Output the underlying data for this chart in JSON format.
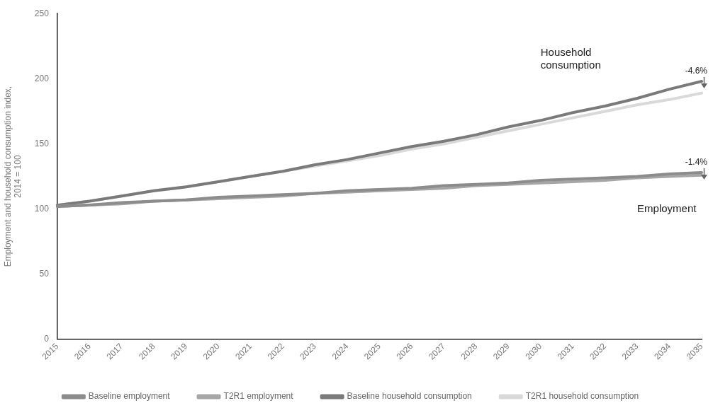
{
  "chart_data": {
    "type": "line",
    "ylabel": "Employment and household consumption index, 2014 = 100",
    "categories": [
      "2015",
      "2016",
      "2017",
      "2018",
      "2019",
      "2020",
      "2021",
      "2022",
      "2023",
      "2024",
      "2025",
      "2026",
      "2027",
      "2028",
      "2029",
      "2030",
      "2031",
      "2032",
      "2033",
      "2034",
      "2035"
    ],
    "series": [
      {
        "name": "Baseline employment",
        "color": "#8c8c8c",
        "values": [
          102,
          103,
          105,
          106,
          107,
          109,
          110,
          111,
          112,
          114,
          115,
          116,
          118,
          119,
          120,
          122,
          123,
          124,
          125,
          127,
          128
        ]
      },
      {
        "name": "T2R1 employment",
        "color": "#a6a6a6",
        "values": [
          102,
          103,
          104,
          106,
          107,
          108,
          109,
          110,
          112,
          113,
          114,
          115,
          116,
          118,
          119,
          120,
          121,
          122,
          124,
          125,
          126
        ]
      },
      {
        "name": "Baseline household consumption",
        "color": "#7a7a7a",
        "values": [
          103,
          106,
          110,
          114,
          117,
          121,
          125,
          129,
          134,
          138,
          143,
          148,
          152,
          157,
          163,
          168,
          174,
          179,
          185,
          192,
          198
        ]
      },
      {
        "name": "T2R1 household consumption",
        "color": "#d9d9d9",
        "values": [
          103,
          106,
          110,
          114,
          117,
          121,
          125,
          129,
          133,
          137,
          141,
          146,
          150,
          155,
          160,
          165,
          170,
          175,
          180,
          184,
          189
        ]
      }
    ],
    "ylim": [
      0,
      250
    ],
    "yticks": [
      0,
      50,
      100,
      150,
      200,
      250
    ],
    "grid": false,
    "legend": "bottom",
    "marker": "none",
    "line_style": "solid",
    "annotations": [
      "Household consumption",
      "Employment",
      {
        "text": "-4.6%",
        "x": "2035",
        "y": 198
      },
      {
        "text": "-1.4%",
        "x": "2035",
        "y": 128
      }
    ]
  }
}
